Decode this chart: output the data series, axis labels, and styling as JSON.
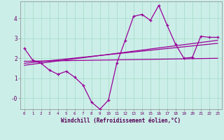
{
  "xlabel": "Windchill (Refroidissement éolien,°C)",
  "background_color": "#cceee8",
  "grid_color": "#aaddcc",
  "line_color": "#990099",
  "xlim": [
    -0.5,
    23.5
  ],
  "ylim": [
    -0.55,
    4.85
  ],
  "yticks": [
    0,
    1,
    2,
    3,
    4
  ],
  "ytick_labels": [
    "-0",
    "1",
    "2",
    "3",
    "4"
  ],
  "xticks": [
    0,
    1,
    2,
    3,
    4,
    5,
    6,
    7,
    8,
    9,
    10,
    11,
    12,
    13,
    14,
    15,
    16,
    17,
    18,
    19,
    20,
    21,
    22,
    23
  ],
  "series1_x": [
    0,
    1,
    2,
    3,
    4,
    5,
    6,
    7,
    8,
    9,
    10,
    11,
    12,
    13,
    14,
    15,
    16,
    17,
    18,
    19,
    20,
    21,
    22,
    23
  ],
  "series1_y": [
    2.5,
    1.9,
    1.75,
    1.4,
    1.2,
    1.35,
    1.05,
    0.65,
    -0.2,
    -0.55,
    -0.1,
    1.75,
    2.9,
    4.1,
    4.2,
    3.9,
    4.65,
    3.65,
    2.7,
    2.0,
    2.05,
    3.1,
    3.05,
    3.05
  ],
  "series2_x": [
    0,
    23
  ],
  "series2_y": [
    1.85,
    2.0
  ],
  "series3_x": [
    0,
    23
  ],
  "series3_y": [
    1.75,
    2.75
  ],
  "series4_x": [
    0,
    23
  ],
  "series4_y": [
    1.65,
    2.9
  ]
}
